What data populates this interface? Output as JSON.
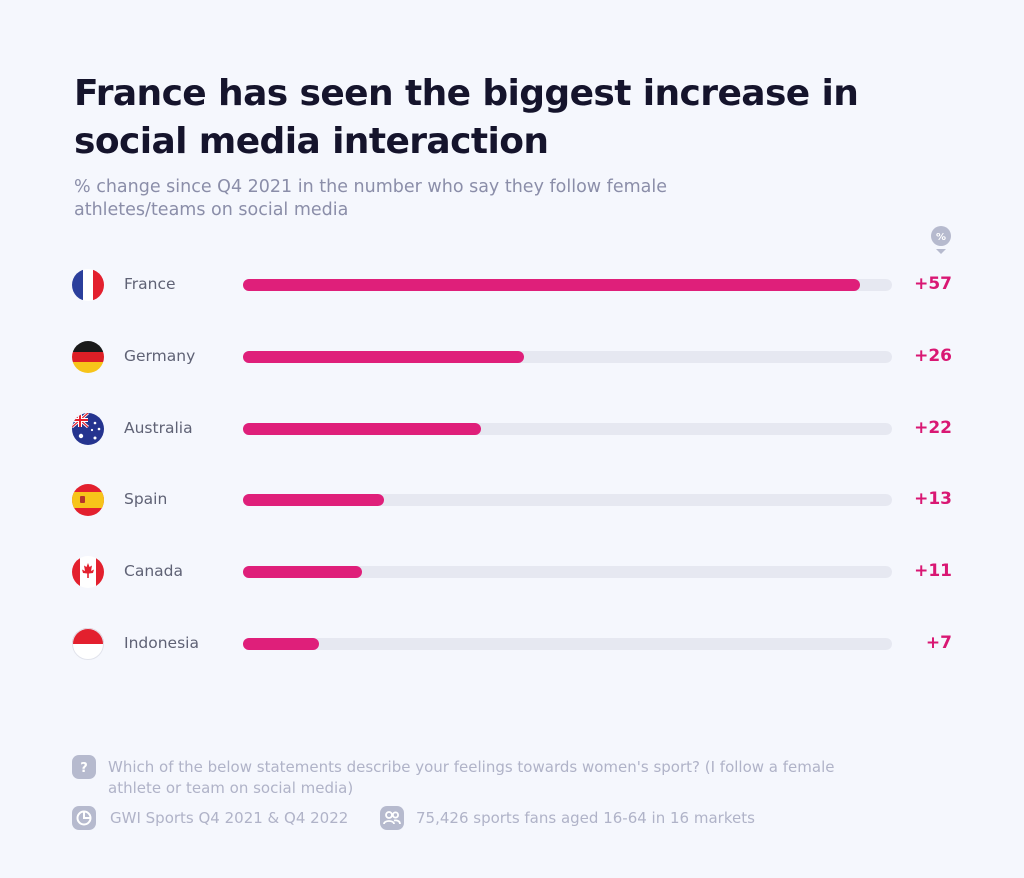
{
  "title": "France has seen the biggest increase in social media interaction",
  "subtitle": "% change since Q4 2021 in the number who say they follow female athletes/teams on social media",
  "unit_badge": "%",
  "colors": {
    "bar": "#df1f7a",
    "track": "#e6e8f1",
    "value": "#d91773",
    "background": "#f5f7fd"
  },
  "chart_data": {
    "type": "bar",
    "orientation": "horizontal",
    "categories": [
      "France",
      "Germany",
      "Australia",
      "Spain",
      "Canada",
      "Indonesia"
    ],
    "values": [
      57,
      26,
      22,
      13,
      11,
      7
    ],
    "value_labels": [
      "+57",
      "+26",
      "+22",
      "+13",
      "+11",
      "+7"
    ],
    "flags": [
      "france-flag-icon",
      "germany-flag-icon",
      "australia-flag-icon",
      "spain-flag-icon",
      "canada-flag-icon",
      "indonesia-flag-icon"
    ],
    "xlim": [
      0,
      60
    ],
    "grid": false,
    "legend": "none"
  },
  "footer": {
    "question": "Which of the below statements describe your feelings towards women's sport? (I follow a female athlete or team on social media)",
    "source": "GWI Sports Q4 2021 & Q4 2022",
    "sample": "75,426 sports fans aged 16-64 in 16 markets",
    "question_icon": "question-icon",
    "source_icon": "chart-source-icon",
    "sample_icon": "people-icon"
  }
}
